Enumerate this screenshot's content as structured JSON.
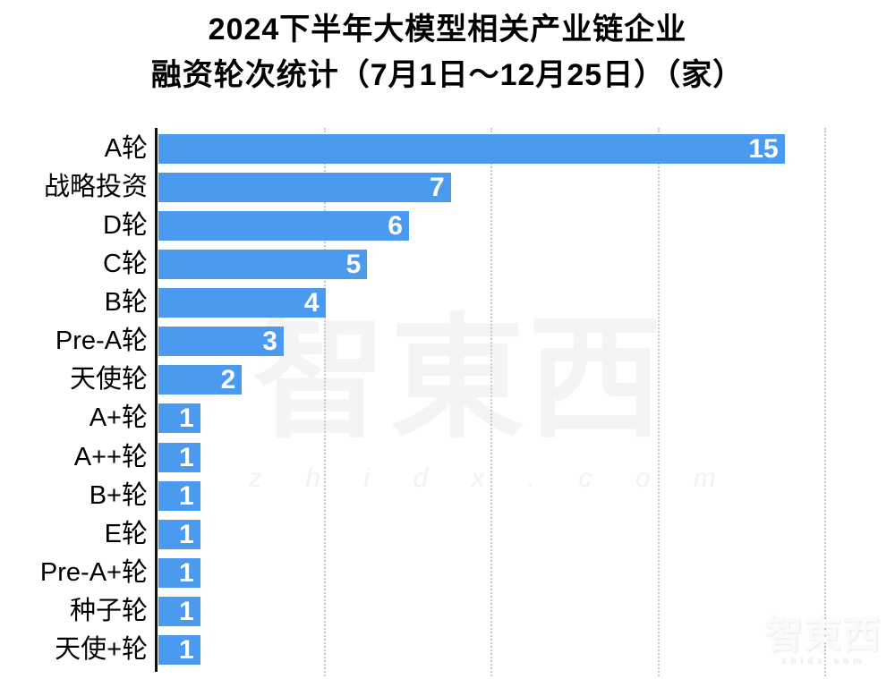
{
  "title": {
    "line1": "2024下半年大模型相关产业链企业",
    "line2": "融资轮次统计（7月1日～12月25日）（家）"
  },
  "chart_data": {
    "type": "bar",
    "orientation": "horizontal",
    "title": "2024下半年大模型相关产业链企业融资轮次统计（7月1日～12月25日）（家）",
    "categories": [
      "A轮",
      "战略投资",
      "D轮",
      "C轮",
      "B轮",
      "Pre-A轮",
      "天使轮",
      "A+轮",
      "A++轮",
      "B+轮",
      "E轮",
      "Pre-A+轮",
      "种子轮",
      "天使+轮"
    ],
    "values": [
      15,
      7,
      6,
      5,
      4,
      3,
      2,
      1,
      1,
      1,
      1,
      1,
      1,
      1
    ],
    "xlabel": "",
    "ylabel": "",
    "xlim": [
      0,
      16
    ],
    "gridline_values": [
      4,
      8,
      12,
      16
    ],
    "grid": true,
    "legend": false,
    "bar_color": "#4A9AF0",
    "value_label_color": "#FFFFFF",
    "axis_color": "#111111",
    "gridline_color": "#C9C9C9"
  },
  "watermark": {
    "center_logo": "智東西",
    "center_url": "z h i d x . c o m",
    "corner_logo": "智東西",
    "corner_url": "zhidx.com"
  }
}
